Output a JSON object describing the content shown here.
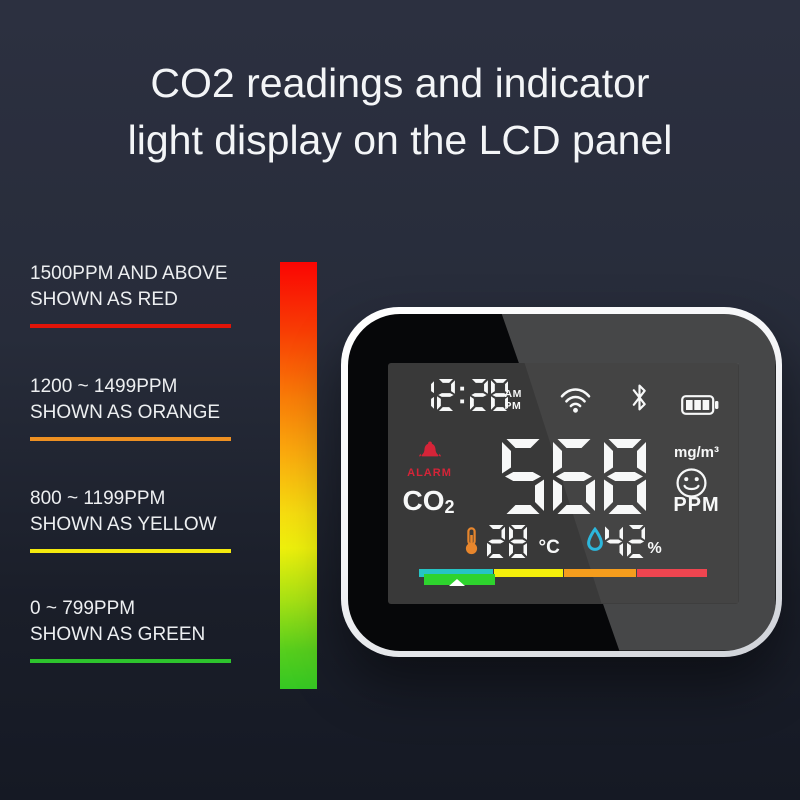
{
  "title": {
    "line1": "CO2 readings and indicator",
    "line2": "light display on the LCD panel"
  },
  "legend": {
    "items": [
      {
        "line1": "1500PPM AND ABOVE",
        "line2": "SHOWN AS RED",
        "color": "#e01408"
      },
      {
        "line1": "1200 ~ 1499PPM",
        "line2": "SHOWN AS ORANGE",
        "color": "#ee9022"
      },
      {
        "line1": "800 ~ 1199PPM",
        "line2": "SHOWN AS YELLOW",
        "color": "#f3e90e"
      },
      {
        "line1": "0 ~ 799PPM",
        "line2": "SHOWN AS GREEN",
        "color": "#2dc32d"
      }
    ],
    "gradient_stops": [
      "#fa0503 0%",
      "#f83c04 16%",
      "#f97d08 32%",
      "#fbab0e 45%",
      "#f6dd10 59%",
      "#eef00c 67%",
      "#a9e214 79%",
      "#57ce1d 91%",
      "#35c723 100%"
    ]
  },
  "device": {
    "lcd": {
      "time": "12:28",
      "ampm_top": "AM",
      "ampm_bottom": "PM",
      "status_icons": [
        "wifi-icon",
        "bluetooth-icon",
        "battery-icon"
      ],
      "alarm_label": "ALARM",
      "alarm_color": "#d62438",
      "gas_label": "CO",
      "gas_label_sub": "2",
      "co2_value": "568",
      "unit_top": "mg/m³",
      "unit_bottom": "PPM",
      "temperature": "28",
      "temperature_unit": "°C",
      "thermometer_color": "#e8862c",
      "humidity": "42",
      "humidity_unit": "%",
      "drop_color": "#2cb7dc",
      "digit_color": "#f7f8f8",
      "scale_segment_colors": [
        "#26c4c4",
        "#f4ef0b",
        "#f59d1d",
        "#ef4550"
      ],
      "indicator_color": "#2ed32e"
    }
  }
}
